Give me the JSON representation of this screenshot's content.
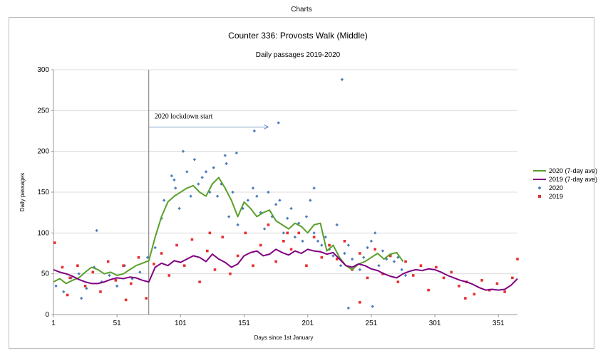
{
  "window": {
    "title": "Charts"
  },
  "chart_data": {
    "type": "scatter",
    "title": "Counter 336: Provosts Walk (Middle)",
    "subtitle": "Daily passages 2019-2020",
    "xlabel": "Days since 1st January",
    "ylabel": "Daily passages",
    "xlim": [
      1,
      366
    ],
    "ylim": [
      0,
      300
    ],
    "xticks": [
      1,
      51,
      101,
      151,
      201,
      251,
      301,
      351
    ],
    "yticks": [
      0,
      50,
      100,
      150,
      200,
      250,
      300
    ],
    "grid": "horizontal",
    "legend_position": "right",
    "annotation": {
      "text": "2020 lockdown start",
      "x": 76,
      "y": 236,
      "arrow_to_x": 170
    },
    "series": [
      {
        "name": "2020 (7-day ave)",
        "kind": "line",
        "color": "#5aa02c",
        "x": [
          1,
          6,
          11,
          16,
          21,
          26,
          31,
          36,
          41,
          46,
          51,
          56,
          61,
          66,
          71,
          76,
          81,
          86,
          91,
          96,
          101,
          106,
          111,
          116,
          121,
          126,
          131,
          136,
          141,
          146,
          151,
          156,
          161,
          166,
          171,
          176,
          181,
          186,
          191,
          196,
          201,
          206,
          211,
          216,
          221,
          226,
          231,
          236,
          241,
          246,
          251,
          256,
          261,
          266,
          271,
          276
        ],
        "y": [
          40,
          44,
          38,
          42,
          45,
          52,
          58,
          55,
          50,
          52,
          48,
          50,
          55,
          60,
          63,
          66,
          95,
          120,
          138,
          145,
          150,
          155,
          158,
          150,
          145,
          160,
          168,
          155,
          140,
          120,
          138,
          130,
          120,
          125,
          128,
          115,
          110,
          105,
          112,
          108,
          100,
          110,
          112,
          78,
          85,
          70,
          60,
          55,
          62,
          65,
          70,
          75,
          68,
          74,
          76,
          65
        ]
      },
      {
        "name": "2019 (7-day ave)",
        "kind": "line",
        "color": "#800080",
        "x": [
          1,
          6,
          11,
          16,
          21,
          26,
          31,
          36,
          41,
          46,
          51,
          56,
          61,
          66,
          71,
          76,
          81,
          86,
          91,
          96,
          101,
          106,
          111,
          116,
          121,
          126,
          131,
          136,
          141,
          146,
          151,
          156,
          161,
          166,
          171,
          176,
          181,
          186,
          191,
          196,
          201,
          206,
          211,
          216,
          221,
          226,
          231,
          236,
          241,
          246,
          251,
          256,
          261,
          266,
          271,
          276,
          281,
          286,
          291,
          296,
          301,
          306,
          311,
          316,
          321,
          326,
          331,
          336,
          341,
          346,
          351,
          356,
          361,
          366
        ],
        "y": [
          55,
          52,
          50,
          47,
          43,
          40,
          38,
          38,
          40,
          43,
          45,
          44,
          46,
          45,
          42,
          40,
          58,
          63,
          60,
          66,
          64,
          68,
          72,
          70,
          65,
          74,
          68,
          64,
          58,
          62,
          72,
          76,
          78,
          72,
          74,
          80,
          76,
          73,
          78,
          75,
          80,
          78,
          77,
          74,
          76,
          68,
          60,
          58,
          62,
          60,
          56,
          54,
          50,
          47,
          45,
          50,
          53,
          55,
          54,
          56,
          55,
          52,
          48,
          45,
          42,
          40,
          37,
          33,
          30,
          31,
          30,
          31,
          36,
          44
        ]
      },
      {
        "name": "2020",
        "kind": "marker",
        "shape": "diamond",
        "color": "#4a7ebb",
        "x": [
          3,
          9,
          15,
          21,
          27,
          33,
          39,
          45,
          51,
          57,
          63,
          69,
          75,
          81,
          86,
          88,
          94,
          97,
          100,
          103,
          106,
          109,
          112,
          115,
          118,
          121,
          124,
          127,
          130,
          133,
          136,
          139,
          142,
          146,
          150,
          154,
          158,
          161,
          164,
          167,
          170,
          173,
          176,
          179,
          182,
          185,
          188,
          191,
          194,
          197,
          200,
          203,
          206,
          209,
          212,
          215,
          218,
          221,
          224,
          227,
          230,
          233,
          236,
          239,
          242,
          245,
          248,
          251,
          254,
          257,
          260,
          263,
          266,
          269,
          272,
          275,
          278,
          23,
          35,
          96,
          137,
          145,
          159,
          178,
          206,
          228,
          233,
          252
        ],
        "y": [
          35,
          28,
          45,
          50,
          32,
          58,
          40,
          48,
          35,
          60,
          44,
          52,
          70,
          82,
          118,
          140,
          170,
          155,
          130,
          200,
          175,
          145,
          190,
          160,
          168,
          175,
          150,
          180,
          145,
          160,
          195,
          120,
          150,
          110,
          130,
          140,
          155,
          145,
          125,
          105,
          150,
          120,
          135,
          140,
          100,
          118,
          130,
          95,
          112,
          90,
          120,
          140,
          100,
          90,
          85,
          95,
          80,
          72,
          110,
          60,
          75,
          85,
          68,
          60,
          55,
          70,
          82,
          90,
          100,
          60,
          78,
          68,
          72,
          65,
          70,
          55,
          48,
          20,
          103,
          165,
          185,
          198,
          225,
          235,
          155,
          288,
          8,
          10
        ]
      },
      {
        "name": "2019",
        "kind": "marker",
        "shape": "square",
        "color": "#e53030",
        "x": [
          2,
          8,
          14,
          20,
          26,
          32,
          38,
          44,
          50,
          56,
          62,
          68,
          74,
          80,
          86,
          92,
          98,
          104,
          110,
          116,
          122,
          128,
          134,
          140,
          146,
          152,
          158,
          164,
          170,
          176,
          182,
          188,
          194,
          200,
          206,
          212,
          218,
          224,
          230,
          236,
          242,
          248,
          254,
          260,
          266,
          272,
          278,
          284,
          290,
          296,
          302,
          308,
          314,
          320,
          326,
          332,
          338,
          344,
          350,
          356,
          362,
          366,
          12,
          58,
          124,
          185,
          242,
          325
        ],
        "y": [
          88,
          58,
          45,
          60,
          35,
          52,
          28,
          65,
          42,
          60,
          38,
          70,
          20,
          62,
          75,
          48,
          85,
          60,
          92,
          40,
          78,
          55,
          95,
          50,
          72,
          100,
          60,
          85,
          110,
          65,
          90,
          80,
          100,
          60,
          95,
          70,
          85,
          68,
          90,
          55,
          75,
          45,
          80,
          50,
          72,
          40,
          65,
          48,
          60,
          30,
          58,
          45,
          52,
          35,
          40,
          25,
          42,
          30,
          38,
          28,
          45,
          68,
          24,
          18,
          100,
          100,
          15,
          20
        ]
      }
    ]
  }
}
